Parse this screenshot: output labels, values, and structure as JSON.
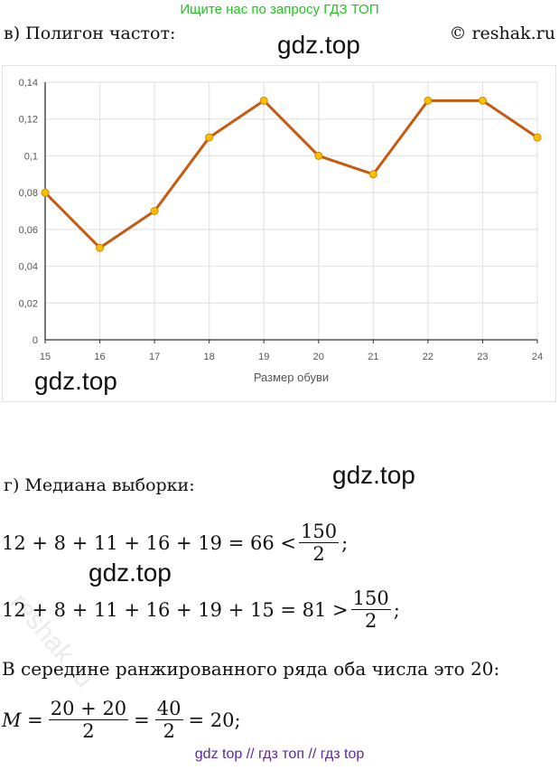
{
  "banner": "Ищите нас по запросу ГДЗ ТОП",
  "section_v": "в) Полигон частот:",
  "copyright": "© reshak.ru",
  "watermark": "gdz.top",
  "chart_data": {
    "type": "line",
    "x": [
      15,
      16,
      17,
      18,
      19,
      20,
      21,
      22,
      23,
      24
    ],
    "values": [
      0.08,
      0.05,
      0.07,
      0.11,
      0.13,
      0.1,
      0.09,
      0.13,
      0.13,
      0.11
    ],
    "xlabel": "Размер обуви",
    "ylabel": "",
    "ylim": [
      0,
      0.14
    ],
    "yticks": [
      "0",
      "0,02",
      "0,04",
      "0,06",
      "0,08",
      "0,1",
      "0,12",
      "0,14"
    ],
    "xticks": [
      "15",
      "16",
      "17",
      "18",
      "19",
      "20",
      "21",
      "22",
      "23",
      "24"
    ],
    "grid": true,
    "line_color": "#c55a11",
    "marker_color": "#ffc000"
  },
  "section_g": "г) Медиана выборки:",
  "eq1": {
    "left": "12 + 8 + 11 + 16 + 19 = 66 <",
    "num": "150",
    "den": "2",
    "end": ";"
  },
  "eq2": {
    "left": "12 + 8 + 11 + 16 + 19 + 15 = 81 >",
    "num": "150",
    "den": "2",
    "end": ";"
  },
  "text1": "В середине ранжированного ряда оба числа это 20:",
  "eq3": {
    "m": "M =",
    "num1": "20 + 20",
    "den1": "2",
    "mid": "=",
    "num2": "40",
    "den2": "2",
    "end": "= 20;"
  },
  "reshak_wm": "reshak.ru",
  "footer": "gdz top  //  гдз топ  //  гдз top"
}
